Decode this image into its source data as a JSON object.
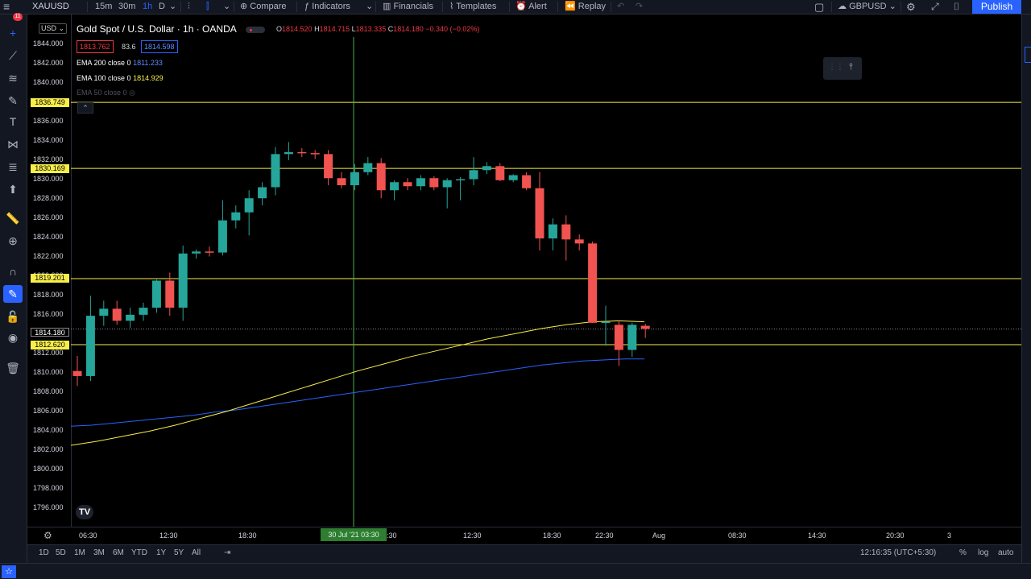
{
  "topbar": {
    "symbol": "XAUUSD",
    "intervals": [
      "15m",
      "30m",
      "1h",
      "D"
    ],
    "compare": "Compare",
    "indicators": "Indicators",
    "financials": "Financials",
    "templates": "Templates",
    "alert": "Alert",
    "replay": "Replay",
    "layout_symbol": "GBPUSD",
    "publish": "Publish"
  },
  "leftbar": {
    "badge": "11"
  },
  "legend": {
    "title": "Gold Spot / U.S. Dollar · 1h · OANDA",
    "o_label": "O",
    "o": "1814.520",
    "h_label": "H",
    "h": "1814.715",
    "l_label": "L",
    "l": "1813.335",
    "c_label": "C",
    "c": "1814.180",
    "change": "−0.340 (−0.02%)",
    "bid": "1813.762",
    "spread": "83.6",
    "ask": "1814.598",
    "ema200_label": "EMA 200 close 0",
    "ema200_value": "1811.233",
    "ema100_label": "EMA 100 close 0",
    "ema100_value": "1814.929",
    "ema50_label": "EMA 50 close 0"
  },
  "price_axis": {
    "currency": "USD",
    "ticks": [
      "1844.000",
      "1842.000",
      "1840.000",
      "1838.000",
      "1836.000",
      "1834.000",
      "1832.000",
      "1830.000",
      "1828.000",
      "1826.000",
      "1824.000",
      "1822.000",
      "1820.000",
      "1818.000",
      "1816.000",
      "1814.000",
      "1812.000",
      "1810.000",
      "1808.000",
      "1806.000",
      "1804.000",
      "1802.000",
      "1800.000",
      "1798.000",
      "1796.000"
    ],
    "hlines": [
      "1836.749",
      "1830.169",
      "1819.201",
      "1812.620"
    ],
    "current": "1814.180"
  },
  "time_axis": {
    "ticks": [
      "06:30",
      "12:30",
      "18:30",
      "06:30",
      "12:30",
      "18:30",
      "22:30",
      "Aug",
      "08:30",
      "14:30",
      "20:30",
      "3"
    ],
    "crosshair_label": "30 Jul '21   03:30"
  },
  "bottombar": {
    "ranges": [
      "1D",
      "5D",
      "1M",
      "3M",
      "6M",
      "YTD",
      "1Y",
      "5Y",
      "All"
    ],
    "clock": "12:16:35 (UTC+5:30)",
    "percent": "%",
    "log": "log",
    "auto": "auto"
  },
  "colors": {
    "up": "#26a69a",
    "down": "#f05350",
    "hline": "#f7ee4a",
    "ema200": "#2962ff",
    "ema100": "#f7ee4a",
    "crosshair": "#4caf50"
  },
  "chart_data": {
    "type": "candlestick",
    "y_axis_range": [
      1794.5,
      1845.5
    ],
    "hlines": [
      1836.749,
      1830.169,
      1819.201,
      1812.62
    ],
    "candles": [
      {
        "o": 1810.0,
        "h": 1811.5,
        "l": 1808.5,
        "c": 1809.5
      },
      {
        "o": 1809.5,
        "h": 1817.5,
        "l": 1809.0,
        "c": 1815.5
      },
      {
        "o": 1815.5,
        "h": 1817.0,
        "l": 1814.5,
        "c": 1816.2
      },
      {
        "o": 1816.2,
        "h": 1817.0,
        "l": 1814.6,
        "c": 1815.0
      },
      {
        "o": 1815.0,
        "h": 1816.3,
        "l": 1814.3,
        "c": 1815.6
      },
      {
        "o": 1815.6,
        "h": 1816.8,
        "l": 1815.0,
        "c": 1816.3
      },
      {
        "o": 1816.3,
        "h": 1819.1,
        "l": 1815.8,
        "c": 1819.0
      },
      {
        "o": 1819.0,
        "h": 1819.8,
        "l": 1815.5,
        "c": 1816.3
      },
      {
        "o": 1816.3,
        "h": 1822.5,
        "l": 1815.0,
        "c": 1821.7
      },
      {
        "o": 1821.7,
        "h": 1822.1,
        "l": 1821.2,
        "c": 1821.9
      },
      {
        "o": 1821.9,
        "h": 1822.4,
        "l": 1821.4,
        "c": 1821.8
      },
      {
        "o": 1821.8,
        "h": 1827.0,
        "l": 1821.5,
        "c": 1825.0
      },
      {
        "o": 1825.0,
        "h": 1826.5,
        "l": 1824.2,
        "c": 1825.8
      },
      {
        "o": 1825.8,
        "h": 1828.0,
        "l": 1823.5,
        "c": 1827.2
      },
      {
        "o": 1827.2,
        "h": 1828.8,
        "l": 1826.5,
        "c": 1828.3
      },
      {
        "o": 1828.3,
        "h": 1832.3,
        "l": 1827.5,
        "c": 1831.6
      },
      {
        "o": 1831.6,
        "h": 1832.8,
        "l": 1831.0,
        "c": 1831.8
      },
      {
        "o": 1831.8,
        "h": 1832.2,
        "l": 1831.3,
        "c": 1831.7
      },
      {
        "o": 1831.7,
        "h": 1832.0,
        "l": 1831.1,
        "c": 1831.6
      },
      {
        "o": 1831.6,
        "h": 1832.0,
        "l": 1828.5,
        "c": 1829.2
      },
      {
        "o": 1829.2,
        "h": 1829.8,
        "l": 1828.2,
        "c": 1828.5
      },
      {
        "o": 1828.5,
        "h": 1830.6,
        "l": 1828.0,
        "c": 1829.8
      },
      {
        "o": 1829.8,
        "h": 1831.3,
        "l": 1829.5,
        "c": 1830.7
      },
      {
        "o": 1830.7,
        "h": 1831.2,
        "l": 1827.2,
        "c": 1828.0
      },
      {
        "o": 1828.0,
        "h": 1829.0,
        "l": 1827.0,
        "c": 1828.8
      },
      {
        "o": 1828.8,
        "h": 1829.2,
        "l": 1828.0,
        "c": 1828.4
      },
      {
        "o": 1828.4,
        "h": 1829.5,
        "l": 1828.0,
        "c": 1829.2
      },
      {
        "o": 1829.2,
        "h": 1829.4,
        "l": 1828.0,
        "c": 1828.3
      },
      {
        "o": 1828.3,
        "h": 1829.2,
        "l": 1826.2,
        "c": 1829.0
      },
      {
        "o": 1829.0,
        "h": 1829.3,
        "l": 1827.0,
        "c": 1829.1
      },
      {
        "o": 1829.1,
        "h": 1831.3,
        "l": 1828.5,
        "c": 1830.0
      },
      {
        "o": 1830.0,
        "h": 1830.8,
        "l": 1829.6,
        "c": 1830.4
      },
      {
        "o": 1830.4,
        "h": 1830.7,
        "l": 1828.9,
        "c": 1829.0
      },
      {
        "o": 1829.0,
        "h": 1829.6,
        "l": 1828.8,
        "c": 1829.5
      },
      {
        "o": 1829.5,
        "h": 1829.8,
        "l": 1828.0,
        "c": 1828.2
      },
      {
        "o": 1828.2,
        "h": 1829.8,
        "l": 1822.0,
        "c": 1823.2
      },
      {
        "o": 1823.2,
        "h": 1825.2,
        "l": 1822.0,
        "c": 1824.6
      },
      {
        "o": 1824.6,
        "h": 1825.5,
        "l": 1821.0,
        "c": 1823.1
      },
      {
        "o": 1823.1,
        "h": 1823.6,
        "l": 1822.0,
        "c": 1822.7
      },
      {
        "o": 1822.7,
        "h": 1822.9,
        "l": 1814.8,
        "c": 1814.8
      },
      {
        "o": 1814.8,
        "h": 1816.5,
        "l": 1812.5,
        "c": 1814.9
      },
      {
        "o": 1814.6,
        "h": 1815.0,
        "l": 1810.5,
        "c": 1812.1
      },
      {
        "o": 1812.1,
        "h": 1814.8,
        "l": 1811.4,
        "c": 1814.6
      },
      {
        "o": 1814.5,
        "h": 1814.7,
        "l": 1813.3,
        "c": 1814.2
      }
    ],
    "ema200": [
      1804.5,
      1804.6,
      1804.8,
      1805.0,
      1805.2,
      1805.4,
      1805.6,
      1805.9,
      1806.1,
      1806.4,
      1806.7,
      1807.0,
      1807.3,
      1807.6,
      1807.9,
      1808.2,
      1808.5,
      1808.8,
      1809.1,
      1809.4,
      1809.7,
      1810.0,
      1810.3,
      1810.6,
      1810.8,
      1811.0,
      1811.1,
      1811.2,
      1811.2
    ],
    "ema100": [
      1802.6,
      1803.0,
      1803.5,
      1804.0,
      1804.6,
      1805.3,
      1806.0,
      1806.8,
      1807.6,
      1808.4,
      1809.2,
      1810.0,
      1810.7,
      1811.4,
      1812.0,
      1812.6,
      1813.2,
      1813.7,
      1814.2,
      1814.6,
      1814.9,
      1815.0,
      1814.9
    ]
  }
}
